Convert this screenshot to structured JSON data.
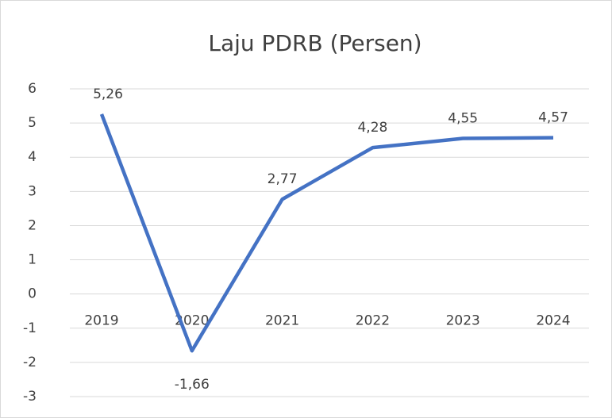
{
  "chart_data": {
    "type": "line",
    "title": "Laju PDRB (Persen)",
    "categories": [
      "2019",
      "2020",
      "2021",
      "2022",
      "2023",
      "2024"
    ],
    "series": [
      {
        "name": "Laju PDRB",
        "color": "#4472c4",
        "values": [
          5.26,
          -1.66,
          2.77,
          4.28,
          4.55,
          4.57
        ],
        "value_labels": [
          "5,26",
          "-1,66",
          "2,77",
          "4,28",
          "4,55",
          "4,57"
        ]
      }
    ],
    "ylim": [
      -3,
      6
    ],
    "yticks": [
      -3,
      -2,
      -1,
      0,
      1,
      2,
      3,
      4,
      5,
      6
    ],
    "grid": true
  }
}
